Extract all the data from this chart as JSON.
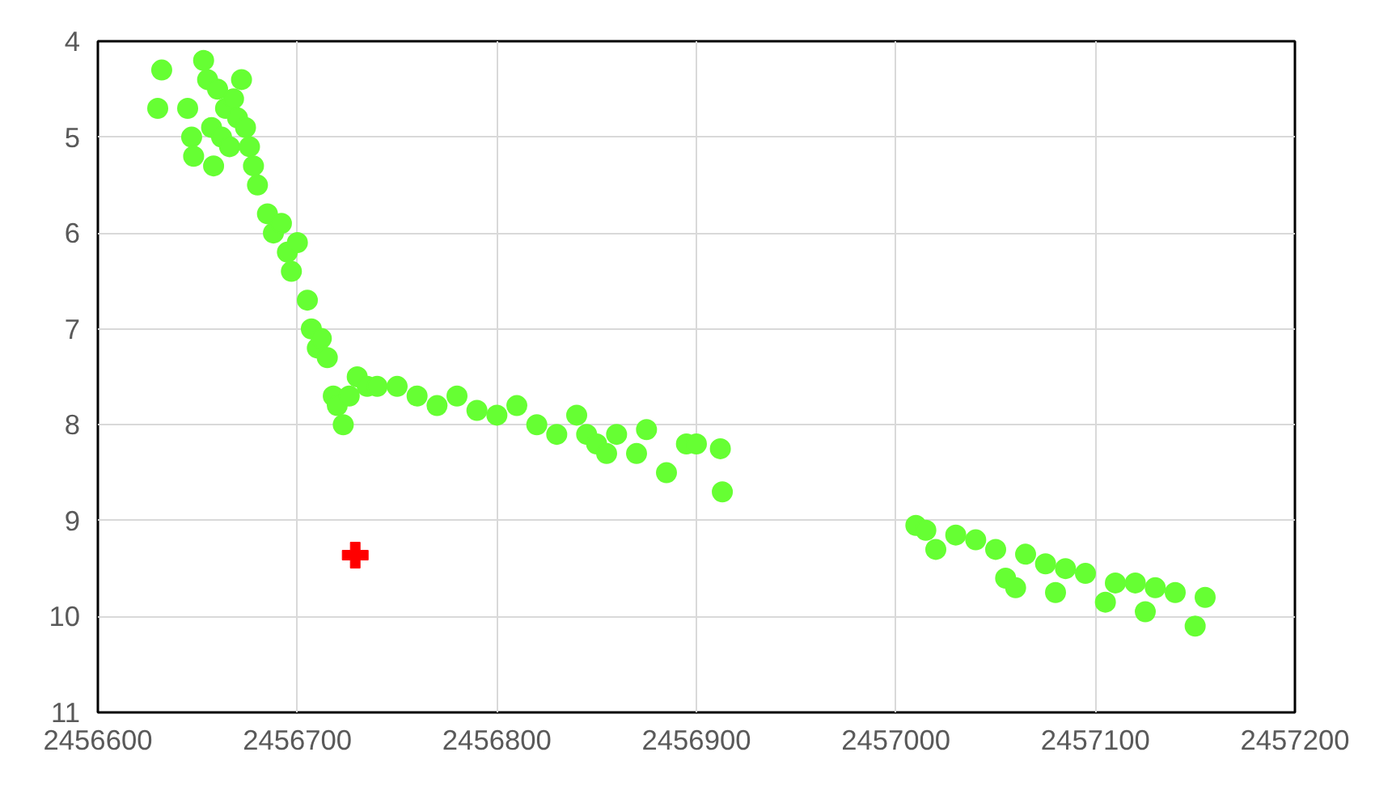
{
  "chart_data": {
    "type": "scatter",
    "xlim": [
      2456600,
      2457200
    ],
    "xticks": [
      2456600,
      2456700,
      2456800,
      2456900,
      2457000,
      2457100,
      2457200
    ],
    "ylim": [
      11,
      4
    ],
    "yticks": [
      4,
      5,
      6,
      7,
      8,
      9,
      10,
      11
    ],
    "grid": true,
    "series": [
      {
        "color": "#66ff33",
        "marker": "circle",
        "x": [
          2456630,
          2456632,
          2456645,
          2456647,
          2456648,
          2456653,
          2456655,
          2456657,
          2456658,
          2456660,
          2456662,
          2456664,
          2456666,
          2456668,
          2456670,
          2456672,
          2456674,
          2456676,
          2456678,
          2456680,
          2456685,
          2456688,
          2456692,
          2456695,
          2456697,
          2456700,
          2456705,
          2456707,
          2456710,
          2456712,
          2456715,
          2456718,
          2456720,
          2456723,
          2456726,
          2456730,
          2456735,
          2456740,
          2456750,
          2456760,
          2456770,
          2456780,
          2456790,
          2456800,
          2456810,
          2456820,
          2456830,
          2456840,
          2456845,
          2456850,
          2456855,
          2456860,
          2456870,
          2456875,
          2456885,
          2456895,
          2456900,
          2456912,
          2456913,
          2457010,
          2457015,
          2457020,
          2457030,
          2457040,
          2457050,
          2457055,
          2457060,
          2457065,
          2457075,
          2457080,
          2457085,
          2457095,
          2457105,
          2457110,
          2457120,
          2457125,
          2457130,
          2457140,
          2457150,
          2457155
        ],
        "values": [
          4.7,
          4.3,
          4.7,
          5.0,
          5.2,
          4.2,
          4.4,
          4.9,
          5.3,
          4.5,
          5.0,
          4.7,
          5.1,
          4.6,
          4.8,
          4.4,
          4.9,
          5.1,
          5.3,
          5.5,
          5.8,
          6.0,
          5.9,
          6.2,
          6.4,
          6.1,
          6.7,
          7.0,
          7.2,
          7.1,
          7.3,
          7.7,
          7.8,
          8.0,
          7.7,
          7.5,
          7.6,
          7.6,
          7.6,
          7.7,
          7.8,
          7.7,
          7.85,
          7.9,
          7.8,
          8.0,
          8.1,
          7.9,
          8.1,
          8.2,
          8.3,
          8.1,
          8.3,
          8.05,
          8.5,
          8.2,
          8.2,
          8.25,
          8.7,
          9.05,
          9.1,
          9.3,
          9.15,
          9.2,
          9.3,
          9.6,
          9.7,
          9.35,
          9.45,
          9.75,
          9.5,
          9.55,
          9.85,
          9.65,
          9.65,
          9.95,
          9.7,
          9.75,
          10.1,
          9.8
        ]
      },
      {
        "color": "#ff0000",
        "marker": "cross",
        "x": [
          2456729
        ],
        "values": [
          9.36
        ]
      }
    ]
  }
}
